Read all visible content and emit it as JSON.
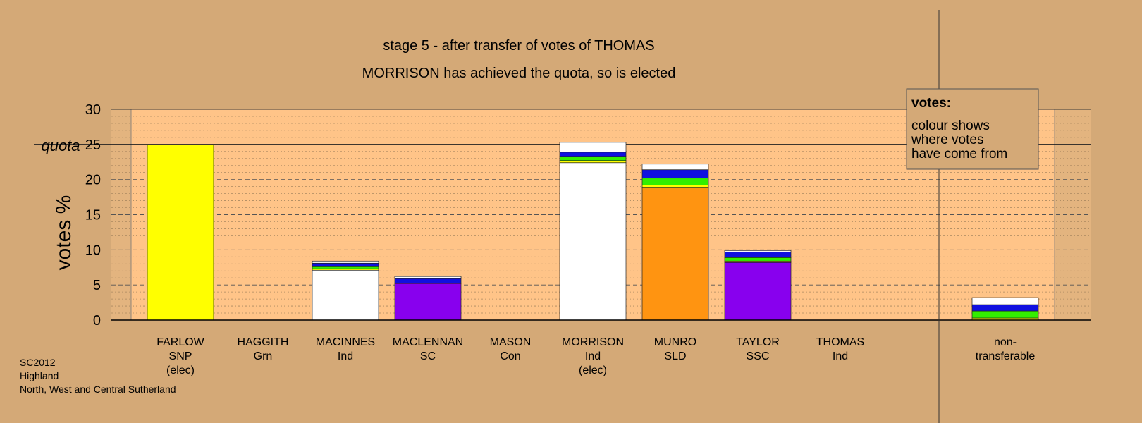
{
  "chart_data": {
    "type": "bar",
    "stacked": true,
    "title": "stage 5 - after transfer of votes of THOMAS",
    "subtitle": "MORRISON has achieved the quota, so is elected",
    "ylabel": "votes %",
    "ylim": [
      0,
      30
    ],
    "yticks": [
      0,
      5,
      10,
      15,
      20,
      25,
      30
    ],
    "quota": 25,
    "quota_label": "quota",
    "grid": true,
    "legend": {
      "title": "votes:",
      "lines": [
        "colour shows",
        "where votes",
        "have come from"
      ],
      "position": "top-right"
    },
    "categories": [
      {
        "name": "FARLOW",
        "party": "SNP",
        "status": "(elec)",
        "segments": [
          {
            "color": "#ffff00",
            "value": 25.0
          }
        ]
      },
      {
        "name": "HAGGITH",
        "party": "Grn",
        "status": "",
        "segments": []
      },
      {
        "name": "MACINNES",
        "party": "Ind",
        "status": "",
        "segments": [
          {
            "color": "#ffffff",
            "value": 7.1
          },
          {
            "color": "#ffff00",
            "value": 0.2
          },
          {
            "color": "#33ee00",
            "value": 0.3
          },
          {
            "color": "#1010e0",
            "value": 0.5
          },
          {
            "color": "#ffffff",
            "value": 0.3
          }
        ]
      },
      {
        "name": "MACLENNAN",
        "party": "SC",
        "status": "",
        "segments": [
          {
            "color": "#8800ee",
            "value": 5.2
          },
          {
            "color": "#1010e0",
            "value": 0.7
          },
          {
            "color": "#ffffff",
            "value": 0.3
          }
        ]
      },
      {
        "name": "MASON",
        "party": "Con",
        "status": "",
        "segments": []
      },
      {
        "name": "MORRISON",
        "party": "Ind",
        "status": "(elec)",
        "segments": [
          {
            "color": "#ffffff",
            "value": 22.4
          },
          {
            "color": "#ffff00",
            "value": 0.3
          },
          {
            "color": "#33ee00",
            "value": 0.6
          },
          {
            "color": "#1010e0",
            "value": 0.6
          },
          {
            "color": "#ffffff",
            "value": 1.4
          }
        ]
      },
      {
        "name": "MUNRO",
        "party": "SLD",
        "status": "",
        "segments": [
          {
            "color": "#ff9411",
            "value": 18.9
          },
          {
            "color": "#ffff00",
            "value": 0.3
          },
          {
            "color": "#33ee00",
            "value": 1.0
          },
          {
            "color": "#1010e0",
            "value": 1.2
          },
          {
            "color": "#ffffff",
            "value": 0.8
          }
        ]
      },
      {
        "name": "TAYLOR",
        "party": "SSC",
        "status": "",
        "segments": [
          {
            "color": "#8800ee",
            "value": 8.2
          },
          {
            "color": "#ffff00",
            "value": 0.2
          },
          {
            "color": "#33ee00",
            "value": 0.5
          },
          {
            "color": "#1010e0",
            "value": 0.8
          },
          {
            "color": "#ffffff",
            "value": 0.2
          }
        ]
      },
      {
        "name": "THOMAS",
        "party": "Ind",
        "status": "",
        "segments": []
      },
      {
        "name": "non-",
        "party": "transferable",
        "status": "",
        "segments": [
          {
            "color": "#ffff00",
            "value": 0.3
          },
          {
            "color": "#33ee00",
            "value": 1.0
          },
          {
            "color": "#1010e0",
            "value": 0.9
          },
          {
            "color": "#ffffff",
            "value": 1.0
          }
        ]
      }
    ]
  },
  "footer": {
    "line1": "SC2012",
    "line2": "Highland",
    "line3": "North, West and Central Sutherland"
  },
  "colors": {
    "background": "#d4a977",
    "plot_background": "#ffc488",
    "plot_background_side": "#e3b47f"
  }
}
